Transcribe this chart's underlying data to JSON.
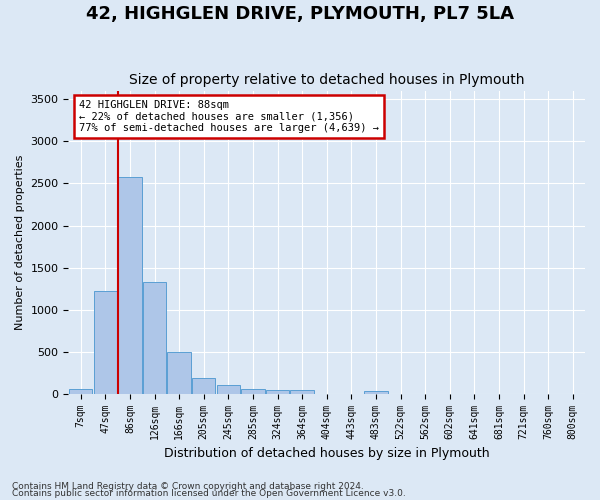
{
  "title": "42, HIGHGLEN DRIVE, PLYMOUTH, PL7 5LA",
  "subtitle": "Size of property relative to detached houses in Plymouth",
  "xlabel": "Distribution of detached houses by size in Plymouth",
  "ylabel": "Number of detached properties",
  "footer_line1": "Contains HM Land Registry data © Crown copyright and database right 2024.",
  "footer_line2": "Contains public sector information licensed under the Open Government Licence v3.0.",
  "bin_labels": [
    "7sqm",
    "47sqm",
    "86sqm",
    "126sqm",
    "166sqm",
    "205sqm",
    "245sqm",
    "285sqm",
    "324sqm",
    "364sqm",
    "404sqm",
    "443sqm",
    "483sqm",
    "522sqm",
    "562sqm",
    "602sqm",
    "641sqm",
    "681sqm",
    "721sqm",
    "760sqm",
    "800sqm"
  ],
  "bar_values": [
    50,
    1220,
    2580,
    1330,
    490,
    190,
    100,
    50,
    45,
    40,
    0,
    0,
    35,
    0,
    0,
    0,
    0,
    0,
    0,
    0,
    0
  ],
  "bar_color": "#aec6e8",
  "bar_edge_color": "#5a9fd4",
  "ylim": [
    0,
    3600
  ],
  "yticks": [
    0,
    500,
    1000,
    1500,
    2000,
    2500,
    3000,
    3500
  ],
  "property_line_x": 1.5,
  "property_line_color": "#cc0000",
  "annotation_text": "42 HIGHGLEN DRIVE: 88sqm\n← 22% of detached houses are smaller (1,356)\n77% of semi-detached houses are larger (4,639) →",
  "annotation_box_color": "#cc0000",
  "background_color": "#dce8f5",
  "grid_color": "#ffffff",
  "title_fontsize": 13,
  "subtitle_fontsize": 10,
  "footer_fontsize": 6.5,
  "ylabel_fontsize": 8,
  "xlabel_fontsize": 9
}
